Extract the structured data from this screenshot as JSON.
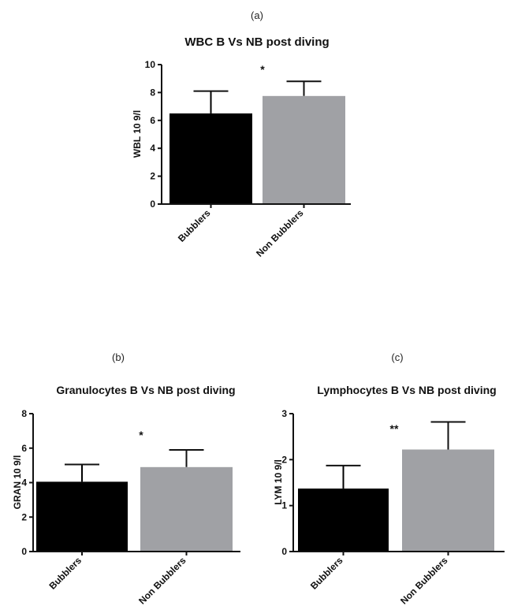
{
  "chart_data": [
    {
      "type": "bar",
      "panel": "(a)",
      "title": "WBC B Vs NB  post diving",
      "ylabel": "WBL 10 9/l",
      "xlabel": "",
      "categories": [
        "Bubblers",
        "Non Bubblers"
      ],
      "values": [
        6.5,
        7.75
      ],
      "errors": [
        1.6,
        1.05
      ],
      "colors": [
        "#000000",
        "#a0a1a5"
      ],
      "ylim": [
        0,
        10
      ],
      "yticks": [
        "0",
        "2",
        "4",
        "6",
        "8",
        "10"
      ],
      "significance": "*",
      "grid": false
    },
    {
      "type": "bar",
      "panel": "(b)",
      "title": "Granulocytes B Vs NB post diving",
      "ylabel": "GRAN 10 9/l",
      "xlabel": "",
      "categories": [
        "Bubblers",
        "Non Bubblers"
      ],
      "values": [
        4.05,
        4.9
      ],
      "errors": [
        1.0,
        1.0
      ],
      "colors": [
        "#000000",
        "#a0a1a5"
      ],
      "ylim": [
        0,
        8
      ],
      "yticks": [
        "0",
        "2",
        "4",
        "6",
        "8"
      ],
      "significance": "*",
      "grid": false
    },
    {
      "type": "bar",
      "panel": "(c)",
      "title": "Lymphocytes B Vs NB post diving",
      "ylabel": "LYM 10 9/l",
      "xlabel": "",
      "categories": [
        "Bubblers",
        "Non Bubblers"
      ],
      "values": [
        1.37,
        2.22
      ],
      "errors": [
        0.5,
        0.6
      ],
      "colors": [
        "#000000",
        "#a0a1a5"
      ],
      "ylim": [
        0,
        3
      ],
      "yticks": [
        "0",
        "1",
        "2",
        "3"
      ],
      "significance": "**",
      "grid": false
    }
  ]
}
